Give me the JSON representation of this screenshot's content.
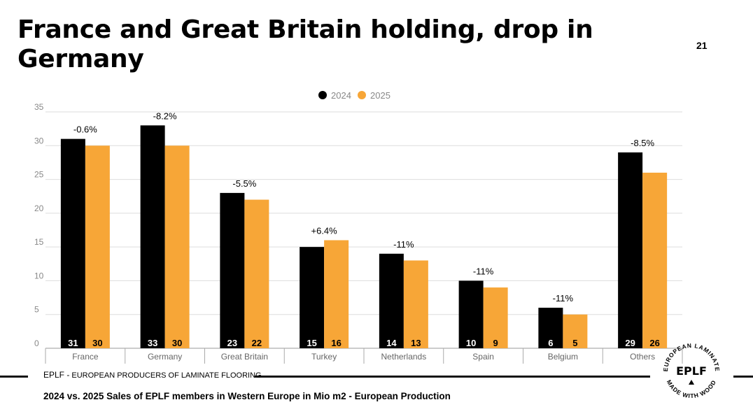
{
  "slide": {
    "title": "France and Great Britain holding, drop in Germany",
    "page_number": "21",
    "footer_org_lead": "EPLF -",
    "footer_org_rest": "EUROPEAN PRODUCERS OF LAMINATE FLOORING",
    "caption": "2024 vs. 2025 Sales of EPLF members in Western Europe in Mio m2 - European Production",
    "logo": {
      "name": "EPLF",
      "ring_top": "EUROPEAN LAMINATE",
      "ring_bottom": "MADE WITH WOOD"
    }
  },
  "colors": {
    "series_2024": "#000000",
    "series_2025": "#f7a637",
    "grid": "#dddddd"
  },
  "chart_data": {
    "type": "bar",
    "title": "",
    "xlabel": "",
    "ylabel": "",
    "ylim": [
      0,
      35
    ],
    "yticks": [
      0,
      5,
      10,
      15,
      20,
      25,
      30,
      35
    ],
    "legend": "top-center",
    "categories": [
      "France",
      "Germany",
      "Great Britain",
      "Turkey",
      "Netherlands",
      "Spain",
      "Belgium",
      "Others"
    ],
    "series": [
      {
        "name": "2024",
        "values": [
          31,
          33,
          23,
          15,
          14,
          10,
          6,
          29
        ]
      },
      {
        "name": "2025",
        "values": [
          30,
          30,
          22,
          16,
          13,
          9,
          5,
          26
        ]
      }
    ],
    "change_labels": [
      "-0.6%",
      "-8.2%",
      "-5.5%",
      "+6.4%",
      "-11%",
      "-11%",
      "-11%",
      "-8.5%"
    ]
  }
}
